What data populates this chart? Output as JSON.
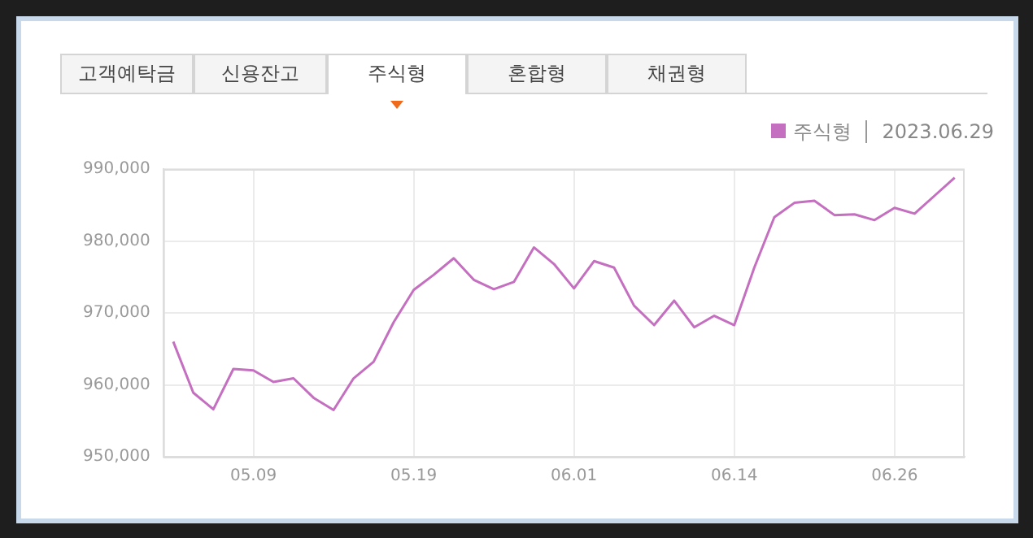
{
  "chart_data": {
    "type": "line",
    "subtitle": "2023.06.29",
    "annotations": [
      "고객예탁금",
      "신용잔고",
      "주식형",
      "혼합형",
      "채권형"
    ],
    "categories": [
      null,
      null,
      null,
      null,
      "05.09",
      null,
      null,
      null,
      null,
      null,
      null,
      null,
      "05.19",
      null,
      null,
      null,
      null,
      null,
      null,
      null,
      "06.01",
      null,
      null,
      null,
      null,
      null,
      null,
      null,
      "06.14",
      null,
      null,
      null,
      null,
      null,
      null,
      null,
      "06.26",
      null,
      null,
      null
    ],
    "series": [
      {
        "name": "주식형",
        "color": "#c46fbf",
        "values": [
          966000,
          958900,
          956600,
          962200,
          962000,
          960400,
          960900,
          958200,
          956500,
          960900,
          963200,
          968700,
          973200,
          975300,
          977600,
          974600,
          973300,
          974300,
          979100,
          976800,
          973400,
          977200,
          976300,
          971000,
          968300,
          971700,
          968000,
          969600,
          968300,
          976300,
          983300,
          985300,
          985600,
          983600,
          983700,
          982900,
          984600,
          983800,
          986300,
          988800
        ]
      }
    ],
    "ylim": [
      950000,
      990000
    ],
    "yticks": [
      {
        "value": 950000,
        "label": "950,000"
      },
      {
        "value": 960000,
        "label": "960,000"
      },
      {
        "value": 970000,
        "label": "970,000"
      },
      {
        "value": 980000,
        "label": "980,000"
      },
      {
        "value": 990000,
        "label": "990,000"
      }
    ],
    "grid": true,
    "legend": "top right",
    "marker": "none",
    "line_style": "solid"
  }
}
